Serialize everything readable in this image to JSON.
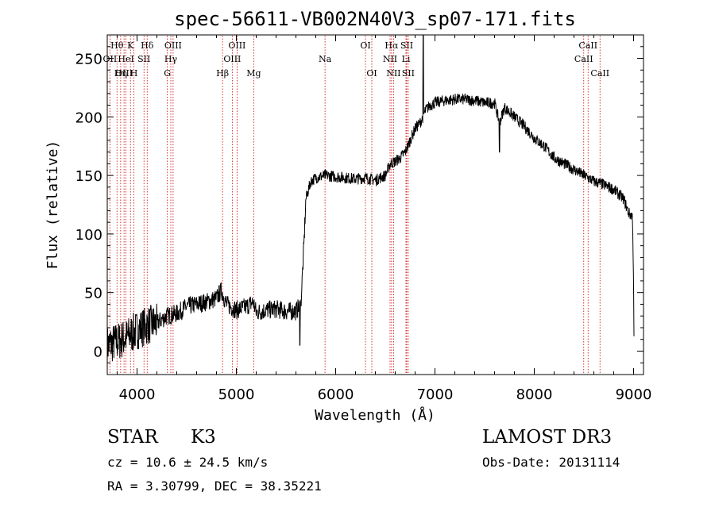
{
  "chart_data": {
    "type": "line",
    "title": "spec-56611-VB002N40V3_sp07-171.fits",
    "xlabel": "Wavelength (Å)",
    "ylabel": "Flux (relative)",
    "xlim": [
      3700,
      9100
    ],
    "ylim": [
      -20,
      270
    ],
    "xticks": [
      4000,
      5000,
      6000,
      7000,
      8000,
      9000
    ],
    "yticks": [
      0,
      50,
      100,
      150,
      200,
      250
    ],
    "line_color": "#000000",
    "marker_color": "#cc0000",
    "series": [
      {
        "name": "flux",
        "x": [
          3700,
          3800,
          3900,
          4000,
          4100,
          4200,
          4300,
          4400,
          4500,
          4600,
          4700,
          4800,
          4850,
          4900,
          5000,
          5100,
          5170,
          5200,
          5300,
          5400,
          5500,
          5600,
          5650,
          5680,
          5700,
          5750,
          5800,
          5900,
          6000,
          6100,
          6200,
          6300,
          6400,
          6500,
          6550,
          6600,
          6650,
          6700,
          6750,
          6800,
          6850,
          6880,
          6900,
          6950,
          7000,
          7100,
          7200,
          7300,
          7400,
          7500,
          7600,
          7650,
          7700,
          7800,
          7900,
          8000,
          8100,
          8200,
          8300,
          8400,
          8500,
          8600,
          8700,
          8800,
          8900,
          8950,
          8990,
          9000,
          9005
        ],
        "y": [
          5,
          8,
          12,
          18,
          22,
          24,
          30,
          32,
          38,
          40,
          42,
          45,
          52,
          40,
          35,
          38,
          42,
          33,
          35,
          36,
          34,
          34,
          40,
          90,
          130,
          145,
          148,
          150,
          149,
          148,
          147,
          148,
          146,
          150,
          160,
          162,
          165,
          170,
          180,
          190,
          195,
          200,
          205,
          210,
          212,
          214,
          215,
          215,
          214,
          212,
          212,
          195,
          208,
          200,
          192,
          182,
          175,
          165,
          160,
          155,
          150,
          145,
          142,
          138,
          130,
          118,
          115,
          55,
          0
        ]
      }
    ],
    "line_markers": [
      {
        "label": "Hθ",
        "x": 3798,
        "row": 1
      },
      {
        "label": "OII",
        "x": 3727,
        "row": 2
      },
      {
        "label": "OIII",
        "x": 3869,
        "row": 3
      },
      {
        "label": "K",
        "x": 3934,
        "row": 1
      },
      {
        "label": "HeI",
        "x": 3889,
        "row": 2
      },
      {
        "label": "Hη",
        "x": 3835,
        "row": 3
      },
      {
        "label": "H",
        "x": 3968,
        "row": 3
      },
      {
        "label": "SII",
        "x": 4070,
        "row": 2
      },
      {
        "label": "Hδ",
        "x": 4102,
        "row": 1
      },
      {
        "label": "OIII",
        "x": 4363,
        "row": 1
      },
      {
        "label": "Hγ",
        "x": 4340,
        "row": 2
      },
      {
        "label": "G",
        "x": 4305,
        "row": 3
      },
      {
        "label": "OIII",
        "x": 5007,
        "row": 1
      },
      {
        "label": "OIII",
        "x": 4959,
        "row": 2
      },
      {
        "label": "Hβ",
        "x": 4861,
        "row": 3
      },
      {
        "label": "Mg",
        "x": 5175,
        "row": 3
      },
      {
        "label": "Na",
        "x": 5893,
        "row": 2
      },
      {
        "label": "OI",
        "x": 6300,
        "row": 1
      },
      {
        "label": "OI",
        "x": 6364,
        "row": 3
      },
      {
        "label": "Hα",
        "x": 6563,
        "row": 1
      },
      {
        "label": "SII",
        "x": 6716,
        "row": 1
      },
      {
        "label": "NII",
        "x": 6548,
        "row": 2
      },
      {
        "label": "Li",
        "x": 6708,
        "row": 2
      },
      {
        "label": "NII",
        "x": 6583,
        "row": 3
      },
      {
        "label": "SII",
        "x": 6731,
        "row": 3
      },
      {
        "label": "CaII",
        "x": 8542,
        "row": 1
      },
      {
        "label": "CaII",
        "x": 8498,
        "row": 2
      },
      {
        "label": "CaII",
        "x": 8662,
        "row": 3
      }
    ]
  },
  "footer": {
    "object_class": "STAR",
    "subclass": "K3",
    "survey": "LAMOST DR3",
    "redshift": "cz = 10.6 ± 24.5 km/s",
    "obs_date": "Obs-Date: 20131114",
    "coordinates": "RA =   3.30799, DEC =  38.35221"
  }
}
